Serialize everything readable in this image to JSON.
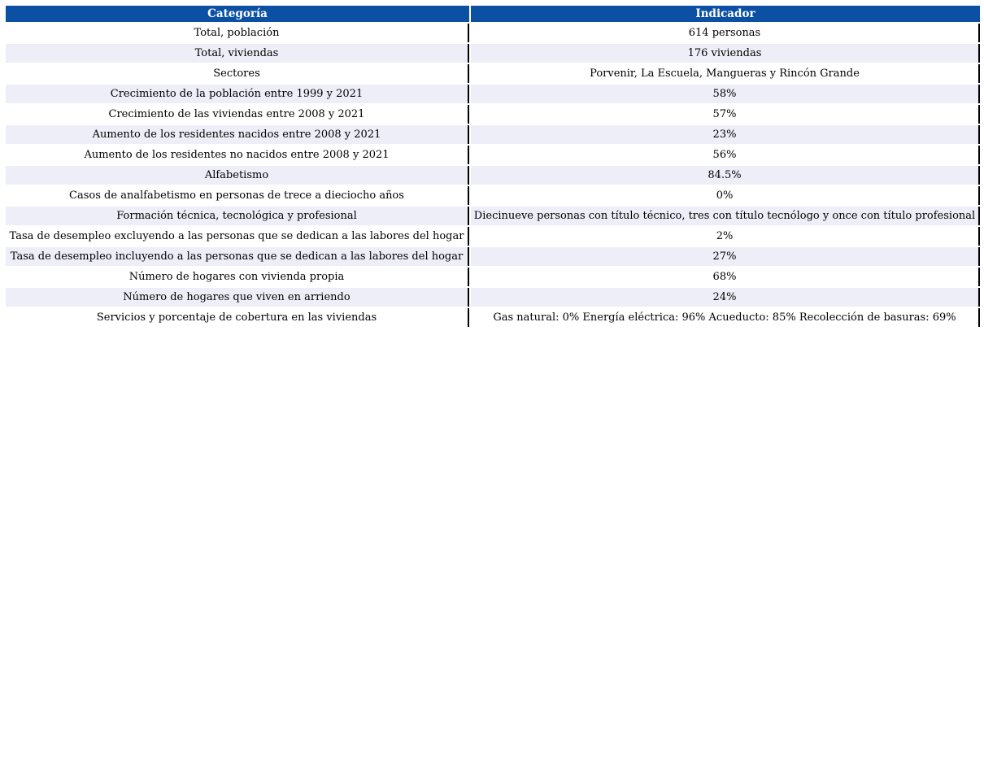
{
  "colors": {
    "header_bg": "#0C50A4",
    "header_text": "#FFFFFF",
    "row_stripe_bg": "#EDEEF8",
    "row_bg": "#FFFFFF",
    "divider": "#000000"
  },
  "table": {
    "columns": {
      "categoria": "Categoría",
      "indicador": "Indicador"
    },
    "rows": [
      {
        "categoria": "Total, población",
        "indicador": "614 personas"
      },
      {
        "categoria": "Total, viviendas",
        "indicador": "176 viviendas"
      },
      {
        "categoria": "Sectores",
        "indicador": "Porvenir, La Escuela, Mangueras y Rincón Grande"
      },
      {
        "categoria": "Crecimiento de la población entre 1999 y 2021",
        "indicador": "58%"
      },
      {
        "categoria": "Crecimiento de las viviendas entre 2008 y 2021",
        "indicador": "57%"
      },
      {
        "categoria": "Aumento de los residentes nacidos entre 2008 y 2021",
        "indicador": "23%"
      },
      {
        "categoria": "Aumento de los residentes no nacidos entre 2008 y 2021",
        "indicador": "56%"
      },
      {
        "categoria": "Alfabetismo",
        "indicador": "84.5%"
      },
      {
        "categoria": "Casos de analfabetismo en personas de trece a dieciocho años",
        "indicador": "0%"
      },
      {
        "categoria": "Formación técnica, tecnológica y profesional",
        "indicador": "Diecinueve personas con título técnico, tres con título tecnólogo y once con título profesional"
      },
      {
        "categoria": "Tasa de desempleo excluyendo a las personas que se dedican a las labores del hogar",
        "indicador": "2%"
      },
      {
        "categoria": "Tasa de desempleo incluyendo a las personas que se dedican a las labores del hogar",
        "indicador": "27%"
      },
      {
        "categoria": "Número de hogares con vivienda propia",
        "indicador": "68%"
      },
      {
        "categoria": "Número de hogares que viven en arriendo",
        "indicador": "24%"
      },
      {
        "categoria": "Servicios y porcentaje de cobertura en las viviendas",
        "indicador": "Gas natural: 0% Energía eléctrica: 96% Acueducto: 85% Recolección de basuras: 69%"
      }
    ]
  }
}
